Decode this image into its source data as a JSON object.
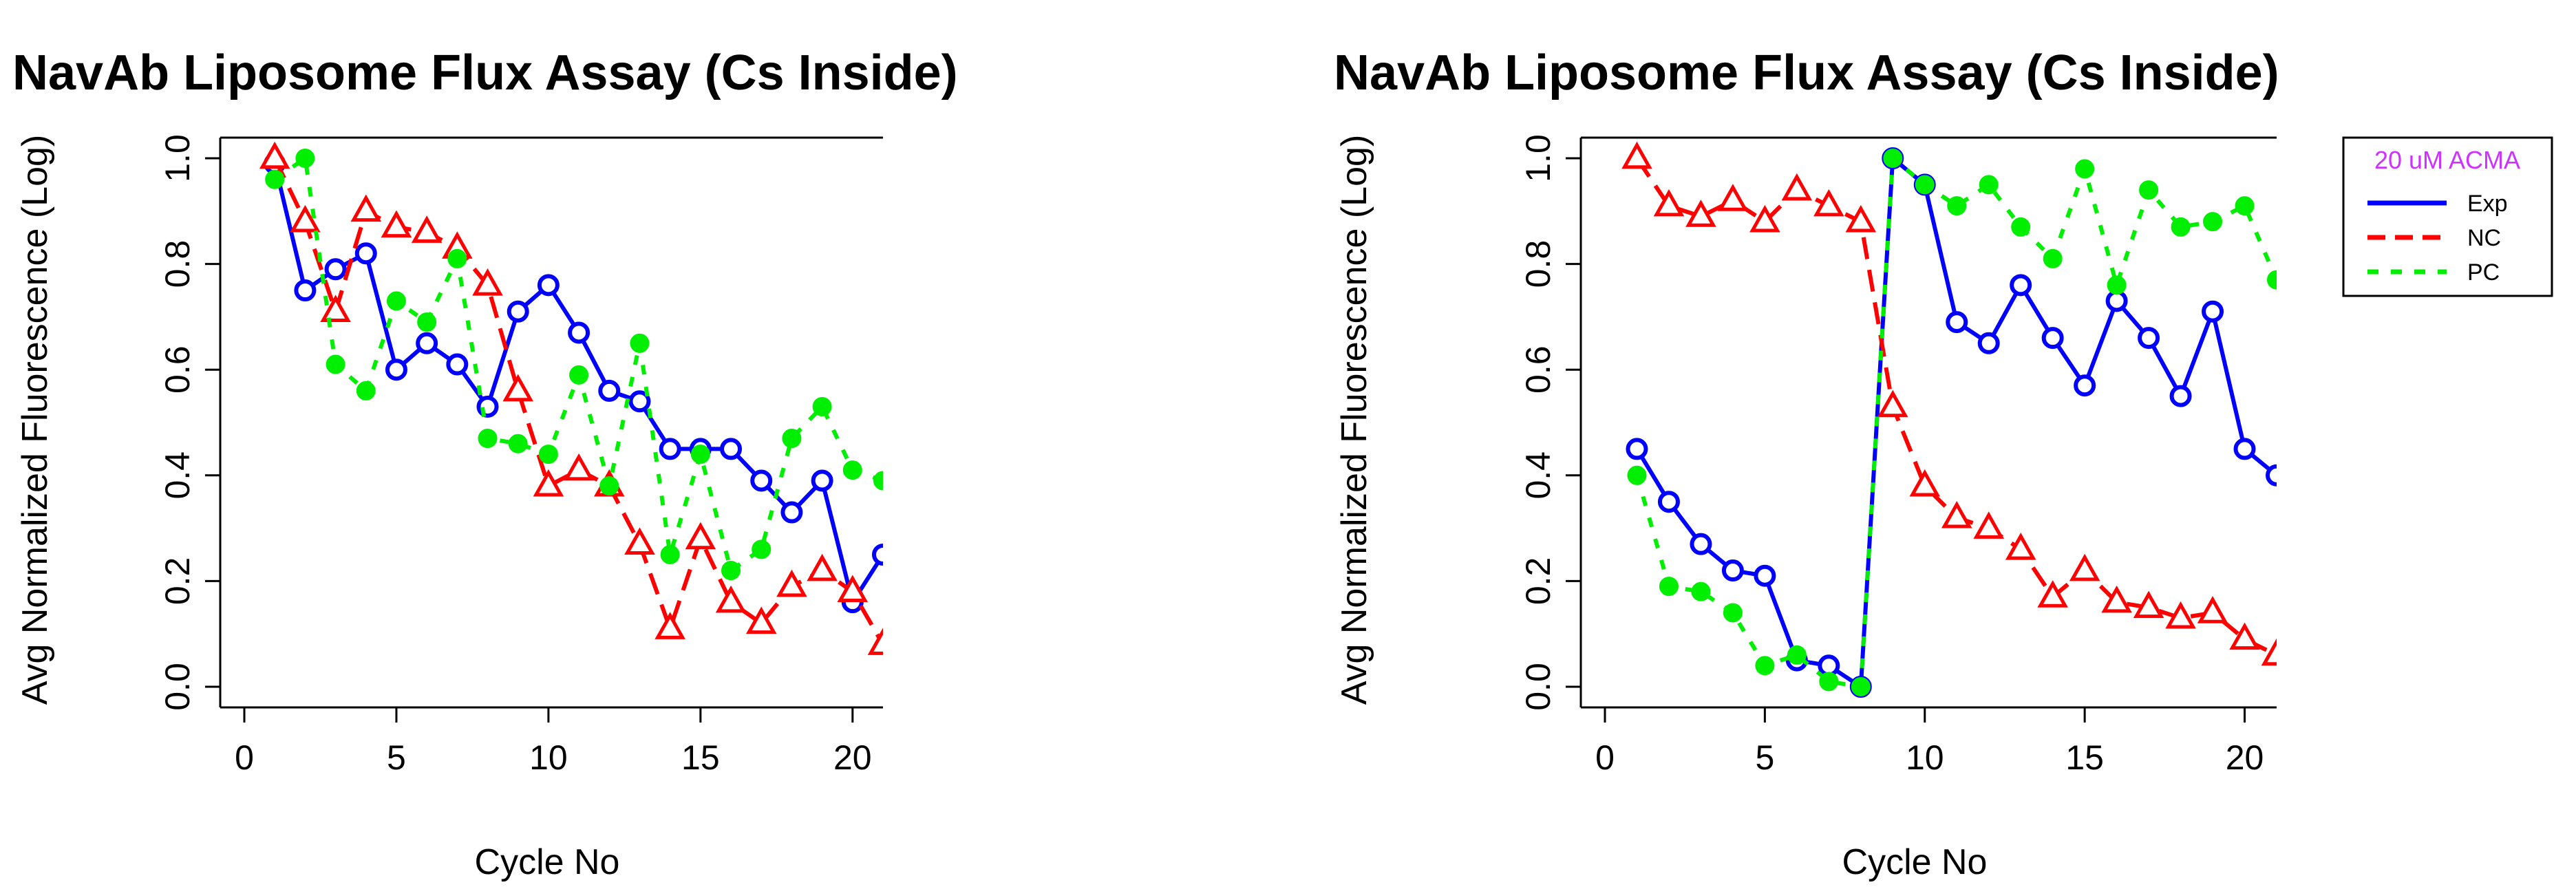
{
  "chart_data": [
    {
      "type": "line",
      "title": "NavAb Liposome Flux Assay (Cs Inside)",
      "xlabel": "Cycle No",
      "ylabel": "Avg Normalized Fluorescence (Log)",
      "xlim": [
        0,
        21
      ],
      "ylim": [
        0,
        1
      ],
      "xticks": [
        "0",
        "5",
        "10",
        "15",
        "20"
      ],
      "yticks": [
        "0.0",
        "0.2",
        "0.4",
        "0.6",
        "0.8",
        "1.0"
      ],
      "x": [
        1,
        2,
        3,
        4,
        5,
        6,
        7,
        8,
        9,
        10,
        11,
        12,
        13,
        14,
        15,
        16,
        17,
        18,
        19,
        20,
        21
      ],
      "series": [
        {
          "name": "Exp",
          "color": "#0000ff",
          "marker": "circle",
          "dash": "solid",
          "values": [
            0.99,
            0.75,
            0.79,
            0.82,
            0.6,
            0.65,
            0.61,
            0.53,
            0.71,
            0.76,
            0.67,
            0.56,
            0.54,
            0.45,
            0.45,
            0.45,
            0.39,
            0.33,
            0.39,
            0.16,
            0.25
          ]
        },
        {
          "name": "NC",
          "color": "#ff0000",
          "marker": "triangle",
          "dash": "dashed",
          "values": [
            1.0,
            0.88,
            0.71,
            0.9,
            0.87,
            0.86,
            0.83,
            0.76,
            0.56,
            0.38,
            0.41,
            0.38,
            0.27,
            0.11,
            0.28,
            0.16,
            0.12,
            0.19,
            0.22,
            0.18,
            0.08
          ]
        },
        {
          "name": "PC",
          "color": "#00ee00",
          "marker": "filled-circle",
          "dash": "dotted",
          "values": [
            0.96,
            1.0,
            0.61,
            0.56,
            0.73,
            0.69,
            0.81,
            0.47,
            0.46,
            0.44,
            0.59,
            0.38,
            0.65,
            0.25,
            0.44,
            0.22,
            0.26,
            0.47,
            0.53,
            0.41,
            0.39
          ]
        }
      ]
    },
    {
      "type": "line",
      "title": "NavAb Liposome Flux Assay (Cs Inside)",
      "xlabel": "Cycle No",
      "ylabel": "Avg Normalized Fluorescence (Log)",
      "xlim": [
        0,
        21
      ],
      "ylim": [
        0,
        1
      ],
      "xticks": [
        "0",
        "5",
        "10",
        "15",
        "20"
      ],
      "yticks": [
        "0.0",
        "0.2",
        "0.4",
        "0.6",
        "0.8",
        "1.0"
      ],
      "x": [
        1,
        2,
        3,
        4,
        5,
        6,
        7,
        8,
        9,
        10,
        11,
        12,
        13,
        14,
        15,
        16,
        17,
        18,
        19,
        20,
        21
      ],
      "series": [
        {
          "name": "Exp",
          "color": "#0000ff",
          "marker": "circle",
          "dash": "solid",
          "values": [
            0.45,
            0.35,
            0.27,
            0.22,
            0.21,
            0.05,
            0.04,
            0.0,
            1.0,
            0.95,
            0.69,
            0.65,
            0.76,
            0.66,
            0.57,
            0.73,
            0.66,
            0.55,
            0.71,
            0.45,
            0.4
          ]
        },
        {
          "name": "NC",
          "color": "#ff0000",
          "marker": "triangle",
          "dash": "dashed",
          "values": [
            1.0,
            0.91,
            0.89,
            0.92,
            0.88,
            0.94,
            0.91,
            0.88,
            0.53,
            0.38,
            0.32,
            0.3,
            0.26,
            0.17,
            0.22,
            0.16,
            0.15,
            0.13,
            0.14,
            0.09,
            0.06
          ]
        },
        {
          "name": "PC",
          "color": "#00ee00",
          "marker": "filled-circle",
          "dash": "dotted",
          "values": [
            0.4,
            0.19,
            0.18,
            0.14,
            0.04,
            0.06,
            0.01,
            0.0,
            1.0,
            0.95,
            0.91,
            0.95,
            0.87,
            0.81,
            0.98,
            0.76,
            0.94,
            0.87,
            0.88,
            0.91,
            0.77
          ]
        }
      ],
      "legend": {
        "title": "20 uM ACMA",
        "title_color": "#cc33ff",
        "placement": "right",
        "entries": [
          "Exp",
          "NC",
          "PC"
        ]
      }
    }
  ]
}
